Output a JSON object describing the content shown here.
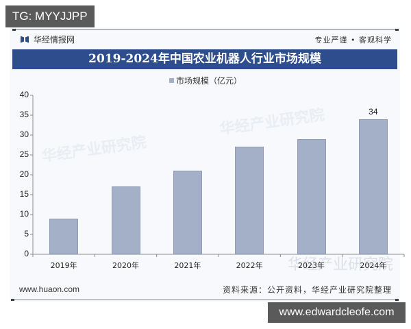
{
  "overlays": {
    "top_left_tag": "TG: MYYJJPP",
    "bottom_right_tag": "www.edwardcleofe.com"
  },
  "header": {
    "brand": "华经情报网",
    "slogan": "专业严谨 • 客观科学",
    "title": "2019-2024年中国农业机器人行业市场规模"
  },
  "legend": {
    "label": "市场规模（亿元）",
    "color": "#a3b0c8"
  },
  "footer": {
    "website": "www.huaon.com",
    "source": "资料来源：公开资料，华经产业研究院整理"
  },
  "watermarks": {
    "center": "华经产业研究院",
    "bottom": "华经产业研究院",
    "bottom_url": "www.huaon.com"
  },
  "chart_data": {
    "type": "bar",
    "title": "2019-2024年中国农业机器人行业市场规模",
    "xlabel": "",
    "ylabel": "",
    "legend": [
      "市场规模（亿元）"
    ],
    "legend_position": "top",
    "grid": false,
    "categories": [
      "2019年",
      "2020年",
      "2021年",
      "2022年",
      "2023年",
      "2024年"
    ],
    "series": [
      {
        "name": "市场规模（亿元）",
        "values": [
          9,
          17,
          21,
          27,
          29,
          34
        ],
        "color": "#a3b0c8"
      }
    ],
    "data_labels": {
      "2024年": "34"
    },
    "ylim": [
      0,
      40
    ],
    "yticks": [
      "0",
      "5",
      "10",
      "15",
      "20",
      "25",
      "30",
      "35",
      "40"
    ]
  }
}
